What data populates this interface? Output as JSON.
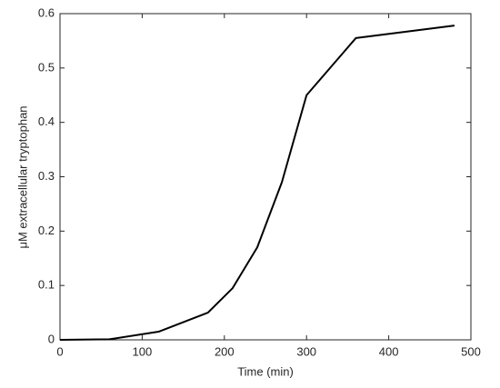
{
  "chart_data": {
    "type": "line",
    "xlabel": "Time (min)",
    "ylabel": "μM extracellular tryptophan",
    "x": [
      0,
      60,
      120,
      180,
      210,
      240,
      270,
      300,
      360,
      480
    ],
    "series": [
      {
        "name": "tryptophan",
        "color": "#000000",
        "values": [
          0,
          0.001,
          0.015,
          0.05,
          0.095,
          0.17,
          0.29,
          0.45,
          0.555,
          0.578
        ]
      }
    ],
    "xlim": [
      0,
      500
    ],
    "xticks": [
      0,
      100,
      200,
      300,
      400,
      500
    ],
    "ylim": [
      0,
      0.6
    ],
    "yticks": [
      0,
      0.1,
      0.2,
      0.3,
      0.4,
      0.5,
      0.6
    ],
    "grid": false
  }
}
